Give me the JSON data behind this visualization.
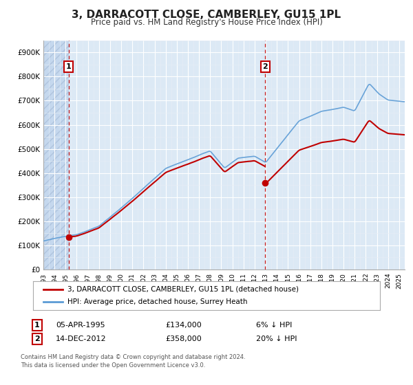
{
  "title": "3, DARRACOTT CLOSE, CAMBERLEY, GU15 1PL",
  "subtitle": "Price paid vs. HM Land Registry's House Price Index (HPI)",
  "ylim": [
    0,
    950000
  ],
  "yticks": [
    0,
    100000,
    200000,
    300000,
    400000,
    500000,
    600000,
    700000,
    800000,
    900000
  ],
  "ytick_labels": [
    "£0",
    "£100K",
    "£200K",
    "£300K",
    "£400K",
    "£500K",
    "£600K",
    "£700K",
    "£800K",
    "£900K"
  ],
  "background_color": "#dce9f5",
  "fig_background": "#ffffff",
  "hatch_region_end_year": 1995.27,
  "xmin": 1993.0,
  "xmax": 2025.5,
  "sale1": {
    "date": "05-APR-1995",
    "year": 1995.27,
    "price": 134000,
    "label": "1",
    "note": "6% ↓ HPI"
  },
  "sale2": {
    "date": "14-DEC-2012",
    "year": 2012.96,
    "price": 358000,
    "label": "2",
    "note": "20% ↓ HPI"
  },
  "legend_line1": "3, DARRACOTT CLOSE, CAMBERLEY, GU15 1PL (detached house)",
  "legend_line2": "HPI: Average price, detached house, Surrey Heath",
  "footer1": "Contains HM Land Registry data © Crown copyright and database right 2024.",
  "footer2": "This data is licensed under the Open Government Licence v3.0.",
  "hpi_color": "#5b9bd5",
  "price_paid_color": "#c00000",
  "grid_color": "#ffffff"
}
